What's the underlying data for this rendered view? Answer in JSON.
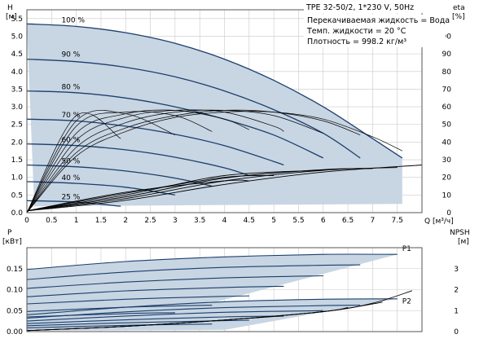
{
  "chart_data": [
    {
      "type": "line",
      "title": "TPE 32-50/2, 1*230 V, 50Hz",
      "notes": [
        "Перекачиваемая жидкость = Вода",
        "Темп. жидкости = 20 °C",
        "Плотность = 998.2 кг/м³"
      ],
      "xlabel": "Q [м³/ч]",
      "ylabel_left": [
        "H",
        "[м]"
      ],
      "ylabel_right": [
        "eta",
        "[%]"
      ],
      "xlim": [
        0,
        8.0
      ],
      "ylim_left": [
        0,
        5.75
      ],
      "ylim_right": [
        0,
        115
      ],
      "x_ticks": [
        "0",
        "0.5",
        "1",
        "1.5",
        "2",
        "2.5",
        "3",
        "3.5",
        "4",
        "4.5",
        "5",
        "5.5",
        "6",
        "6.5",
        "7",
        "7.5"
      ],
      "y_ticks_left": [
        "0.0",
        "0.5",
        "1.0",
        "1.5",
        "2.0",
        "2.5",
        "3.0",
        "3.5",
        "4.0",
        "4.5",
        "5.0",
        "5.5"
      ],
      "y_ticks_right": [
        "0",
        "10",
        "20",
        "30",
        "40",
        "50",
        "60",
        "70",
        "80",
        "90",
        "100"
      ],
      "grid": true,
      "series": [
        {
          "name": "100 %",
          "x": [
            0,
            1,
            2,
            3,
            4,
            5,
            6,
            7,
            7.6
          ],
          "values": [
            5.35,
            5.28,
            5.1,
            4.8,
            4.35,
            3.75,
            3.0,
            2.1,
            1.55
          ]
        },
        {
          "name": "90 %",
          "x": [
            0,
            1,
            2,
            3,
            4,
            5,
            6,
            6.75
          ],
          "values": [
            4.35,
            4.28,
            4.12,
            3.85,
            3.45,
            2.92,
            2.25,
            1.55
          ]
        },
        {
          "name": "80 %",
          "x": [
            0,
            1,
            2,
            3,
            4,
            5,
            6
          ],
          "values": [
            3.45,
            3.4,
            3.25,
            3.0,
            2.65,
            2.2,
            1.55
          ]
        },
        {
          "name": "70 %",
          "x": [
            0,
            1,
            2,
            3,
            4,
            5,
            5.2
          ],
          "values": [
            2.65,
            2.6,
            2.45,
            2.22,
            1.9,
            1.45,
            1.35
          ]
        },
        {
          "name": "60 %",
          "x": [
            0,
            1,
            2,
            3,
            4,
            4.5
          ],
          "values": [
            1.95,
            1.9,
            1.78,
            1.57,
            1.27,
            1.05
          ]
        },
        {
          "name": "50 %",
          "x": [
            0,
            1,
            2,
            3,
            3.75
          ],
          "values": [
            1.35,
            1.3,
            1.18,
            0.98,
            0.75
          ]
        },
        {
          "name": "40 %",
          "x": [
            0,
            1,
            2,
            3
          ],
          "values": [
            0.88,
            0.83,
            0.72,
            0.5
          ]
        },
        {
          "name": "25 %",
          "x": [
            0,
            1,
            1.9
          ],
          "values": [
            0.34,
            0.3,
            0.18
          ]
        }
      ],
      "eta_series": [
        {
          "x": [
            0,
            1,
            2,
            3,
            4,
            5,
            6,
            7,
            7.6
          ],
          "values": [
            0,
            32,
            46,
            54,
            57,
            57,
            53,
            43,
            35
          ]
        },
        {
          "x": [
            0,
            1,
            2,
            3,
            4,
            5,
            6,
            6.75
          ],
          "values": [
            0,
            34,
            48,
            55,
            58,
            57,
            52,
            44
          ]
        },
        {
          "x": [
            0,
            1,
            2,
            3,
            4,
            5,
            6
          ],
          "values": [
            0,
            37,
            51,
            57,
            58,
            55,
            45
          ]
        },
        {
          "x": [
            0,
            1,
            2,
            3,
            4,
            5,
            5.2
          ],
          "values": [
            0,
            41,
            54,
            58,
            57,
            49,
            46
          ]
        },
        {
          "x": [
            0,
            1,
            2,
            3,
            4,
            4.5
          ],
          "values": [
            0,
            45,
            56,
            58,
            53,
            47
          ]
        },
        {
          "x": [
            0,
            1,
            2,
            3,
            3.75
          ],
          "values": [
            0,
            49,
            57,
            55,
            46
          ]
        },
        {
          "x": [
            0,
            1,
            2,
            3
          ],
          "values": [
            0,
            52,
            56,
            44
          ]
        },
        {
          "x": [
            0,
            1,
            1.9
          ],
          "values": [
            0,
            55,
            42
          ]
        }
      ],
      "npsh_series": [
        {
          "x": [
            0,
            2,
            4,
            6,
            8
          ],
          "values": [
            0.05,
            0.35,
            0.8,
            1.15,
            1.35
          ]
        },
        {
          "x": [
            0,
            2,
            4,
            6,
            7.5
          ],
          "values": [
            0.05,
            0.4,
            0.9,
            1.2,
            1.28
          ]
        },
        {
          "x": [
            0,
            2,
            4,
            6,
            7
          ],
          "values": [
            0.05,
            0.45,
            0.98,
            1.22,
            1.25
          ]
        },
        {
          "x": [
            0,
            2,
            4,
            6
          ],
          "values": [
            0.05,
            0.5,
            1.05,
            1.2
          ]
        },
        {
          "x": [
            0,
            2,
            4,
            5
          ],
          "values": [
            0.05,
            0.55,
            1.0,
            1.05
          ]
        },
        {
          "x": [
            0,
            2,
            4,
            4.5
          ],
          "values": [
            0.05,
            0.58,
            0.9,
            0.9
          ]
        }
      ]
    },
    {
      "type": "line",
      "ylabel_left": [
        "P",
        "[кВт]"
      ],
      "ylabel_right": [
        "NPSH",
        "[м]"
      ],
      "xlim": [
        0,
        8.0
      ],
      "ylim_left": [
        0,
        0.2
      ],
      "ylim_right": [
        0,
        4.0
      ],
      "y_ticks_left": [
        "0.00",
        "0.05",
        "0.10",
        "0.15"
      ],
      "y_ticks_right": [
        "0",
        "1",
        "2",
        "3"
      ],
      "grid": true,
      "series": [
        {
          "name": "P1",
          "x": [
            0,
            2,
            4,
            6,
            7.5
          ],
          "values": [
            0.148,
            0.167,
            0.178,
            0.184,
            0.184
          ]
        },
        {
          "name": "P2",
          "x": [
            0,
            2,
            4,
            6,
            7.5
          ],
          "values": [
            0.04,
            0.058,
            0.071,
            0.077,
            0.078
          ]
        }
      ],
      "p1_family": [
        {
          "x": [
            0,
            2,
            4,
            6,
            7.5
          ],
          "values": [
            0.148,
            0.167,
            0.178,
            0.184,
            0.184
          ]
        },
        {
          "x": [
            0,
            2,
            4,
            6,
            6.75
          ],
          "values": [
            0.124,
            0.142,
            0.153,
            0.158,
            0.159
          ]
        },
        {
          "x": [
            0,
            2,
            4,
            6
          ],
          "values": [
            0.103,
            0.118,
            0.128,
            0.133
          ]
        },
        {
          "x": [
            0,
            2,
            4,
            5.2
          ],
          "values": [
            0.083,
            0.097,
            0.105,
            0.108
          ]
        },
        {
          "x": [
            0,
            2,
            4,
            4.5
          ],
          "values": [
            0.066,
            0.077,
            0.084,
            0.085
          ]
        },
        {
          "x": [
            0,
            2,
            3.75
          ],
          "values": [
            0.048,
            0.058,
            0.063
          ]
        },
        {
          "x": [
            0,
            2,
            3
          ],
          "values": [
            0.035,
            0.043,
            0.045
          ]
        }
      ],
      "p2_family": [
        {
          "x": [
            0,
            2,
            4,
            6,
            7.5
          ],
          "values": [
            0.04,
            0.058,
            0.071,
            0.077,
            0.078
          ]
        },
        {
          "x": [
            0,
            2,
            4,
            6,
            6.75
          ],
          "values": [
            0.032,
            0.047,
            0.057,
            0.062,
            0.063
          ]
        },
        {
          "x": [
            0,
            2,
            4,
            6
          ],
          "values": [
            0.025,
            0.037,
            0.046,
            0.05
          ]
        },
        {
          "x": [
            0,
            2,
            4,
            5.2
          ],
          "values": [
            0.019,
            0.028,
            0.035,
            0.037
          ]
        },
        {
          "x": [
            0,
            2,
            4,
            4.5
          ],
          "values": [
            0.014,
            0.021,
            0.026,
            0.027
          ]
        },
        {
          "x": [
            0,
            2,
            3.75
          ],
          "values": [
            0.009,
            0.015,
            0.018
          ]
        }
      ],
      "npsh_curves": [
        {
          "x": [
            0,
            2,
            4,
            6,
            7,
            7.8
          ],
          "values": [
            0.05,
            0.25,
            0.55,
            0.95,
            1.35,
            1.95
          ]
        },
        {
          "x": [
            0,
            2,
            4,
            6,
            7.2
          ],
          "values": [
            0.05,
            0.25,
            0.55,
            0.95,
            1.4
          ]
        },
        {
          "x": [
            0,
            2,
            4,
            6,
            6.5
          ],
          "values": [
            0.05,
            0.25,
            0.55,
            0.95,
            1.15
          ]
        },
        {
          "x": [
            0,
            2,
            4,
            5.2
          ],
          "values": [
            0.05,
            0.25,
            0.55,
            0.75
          ]
        }
      ]
    }
  ],
  "colors": {
    "curve": "#1b3f6b",
    "band": "#c8d5e3",
    "eta": "#000000",
    "grid": "#c9c9c9"
  }
}
